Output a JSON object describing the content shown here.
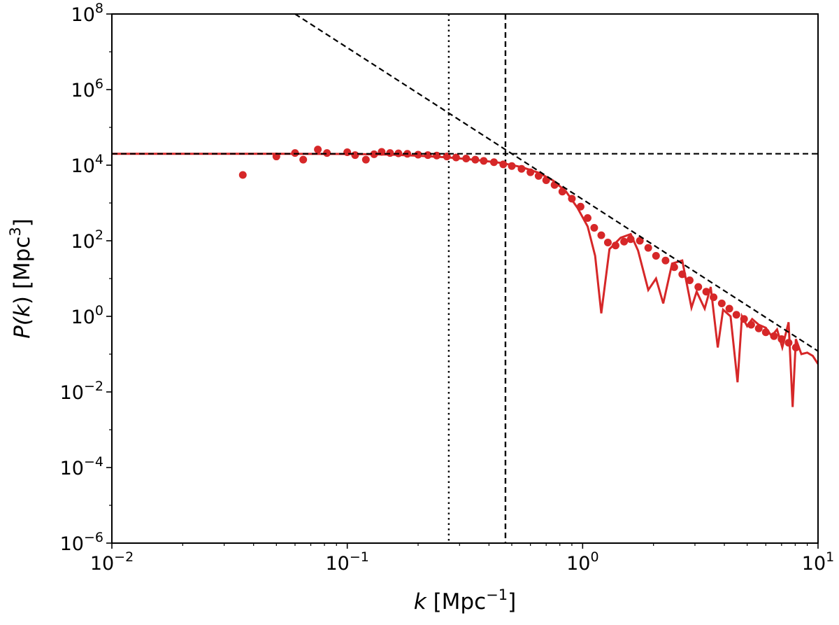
{
  "chart_data": {
    "type": "line",
    "xscale": "log",
    "yscale": "log",
    "xlim": [
      0.01,
      10
    ],
    "ylim": [
      1e-06,
      100000000.0
    ],
    "xlabel": {
      "var": "k",
      "unit_open": " [Mpc",
      "unit_exp": "−1",
      "unit_close": "]"
    },
    "ylabel": {
      "var_open": "P(",
      "var_k": "k",
      "var_close": ")",
      "unit_open": " [Mpc",
      "unit_exp": "3",
      "unit_close": "]"
    },
    "x_ticks": [
      {
        "value": 0.01,
        "base": "10",
        "exp": "−2"
      },
      {
        "value": 0.1,
        "base": "10",
        "exp": "−1"
      },
      {
        "value": 1,
        "base": "10",
        "exp": "0"
      },
      {
        "value": 10,
        "base": "10",
        "exp": "1"
      }
    ],
    "y_ticks": [
      {
        "value": 1e-06,
        "base": "10",
        "exp": "−6"
      },
      {
        "value": 0.0001,
        "base": "10",
        "exp": "−4"
      },
      {
        "value": 0.01,
        "base": "10",
        "exp": "−2"
      },
      {
        "value": 1,
        "base": "10",
        "exp": "0"
      },
      {
        "value": 100,
        "base": "10",
        "exp": "2"
      },
      {
        "value": 10000,
        "base": "10",
        "exp": "4"
      },
      {
        "value": 1000000,
        "base": "10",
        "exp": "6"
      },
      {
        "value": 100000000,
        "base": "10",
        "exp": "8"
      }
    ],
    "colors": {
      "series": "#d62728",
      "reference": "#000000"
    },
    "series": [
      {
        "style": "solid-line",
        "color": "#d62728",
        "points": [
          [
            0.01,
            20000
          ],
          [
            0.05,
            20000
          ],
          [
            0.1,
            19800
          ],
          [
            0.15,
            19000
          ],
          [
            0.2,
            17800
          ],
          [
            0.27,
            16000
          ],
          [
            0.35,
            13800
          ],
          [
            0.45,
            11500
          ],
          [
            0.55,
            8900
          ],
          [
            0.65,
            6300
          ],
          [
            0.75,
            3900
          ],
          [
            0.85,
            2000
          ],
          [
            0.95,
            750
          ],
          [
            1.05,
            240
          ],
          [
            1.13,
            40
          ],
          [
            1.2,
            1.2
          ],
          [
            1.3,
            60
          ],
          [
            1.45,
            120
          ],
          [
            1.6,
            150
          ],
          [
            1.72,
            55
          ],
          [
            1.9,
            5
          ],
          [
            2.05,
            10
          ],
          [
            2.2,
            2.2
          ],
          [
            2.4,
            25
          ],
          [
            2.65,
            30
          ],
          [
            2.9,
            1.7
          ],
          [
            3.05,
            4.5
          ],
          [
            3.3,
            1.6
          ],
          [
            3.5,
            6
          ],
          [
            3.75,
            0.15
          ],
          [
            3.95,
            1.5
          ],
          [
            4.25,
            1.0
          ],
          [
            4.55,
            0.018
          ],
          [
            4.75,
            1.0
          ],
          [
            5.0,
            0.55
          ],
          [
            5.25,
            0.85
          ],
          [
            5.6,
            0.6
          ],
          [
            6.0,
            0.5
          ],
          [
            6.35,
            0.3
          ],
          [
            6.7,
            0.45
          ],
          [
            7.05,
            0.15
          ],
          [
            7.5,
            0.7
          ],
          [
            7.8,
            0.004
          ],
          [
            8.05,
            0.25
          ],
          [
            8.5,
            0.1
          ],
          [
            9.0,
            0.11
          ],
          [
            9.5,
            0.09
          ],
          [
            10,
            0.055
          ]
        ]
      },
      {
        "style": "markers",
        "color": "#d62728",
        "points": [
          [
            0.036,
            5500
          ],
          [
            0.05,
            17000
          ],
          [
            0.06,
            21000
          ],
          [
            0.065,
            14000
          ],
          [
            0.075,
            26000
          ],
          [
            0.082,
            21000
          ],
          [
            0.1,
            22000
          ],
          [
            0.108,
            18500
          ],
          [
            0.12,
            14000
          ],
          [
            0.13,
            19500
          ],
          [
            0.14,
            22500
          ],
          [
            0.152,
            21000
          ],
          [
            0.165,
            20500
          ],
          [
            0.18,
            20000
          ],
          [
            0.2,
            19000
          ],
          [
            0.22,
            18500
          ],
          [
            0.24,
            18000
          ],
          [
            0.265,
            17000
          ],
          [
            0.29,
            16000
          ],
          [
            0.32,
            15000
          ],
          [
            0.35,
            14000
          ],
          [
            0.38,
            13000
          ],
          [
            0.42,
            12000
          ],
          [
            0.46,
            10500
          ],
          [
            0.5,
            9500
          ],
          [
            0.55,
            8000
          ],
          [
            0.6,
            6500
          ],
          [
            0.65,
            5200
          ],
          [
            0.7,
            4000
          ],
          [
            0.76,
            3000
          ],
          [
            0.82,
            2000
          ],
          [
            0.9,
            1300
          ],
          [
            0.98,
            800
          ],
          [
            1.05,
            400
          ],
          [
            1.12,
            220
          ],
          [
            1.2,
            140
          ],
          [
            1.28,
            90
          ],
          [
            1.38,
            75
          ],
          [
            1.5,
            95
          ],
          [
            1.6,
            110
          ],
          [
            1.75,
            100
          ],
          [
            1.9,
            65
          ],
          [
            2.05,
            40
          ],
          [
            2.25,
            30
          ],
          [
            2.45,
            20
          ],
          [
            2.65,
            13
          ],
          [
            2.85,
            9
          ],
          [
            3.1,
            6
          ],
          [
            3.35,
            4.5
          ],
          [
            3.6,
            3.2
          ],
          [
            3.9,
            2.2
          ],
          [
            4.2,
            1.6
          ],
          [
            4.5,
            1.1
          ],
          [
            4.85,
            0.85
          ],
          [
            5.2,
            0.6
          ],
          [
            5.6,
            0.48
          ],
          [
            6.0,
            0.38
          ],
          [
            6.5,
            0.3
          ],
          [
            7.0,
            0.25
          ],
          [
            7.5,
            0.2
          ],
          [
            8.05,
            0.15
          ]
        ]
      },
      {
        "style": "dashed-line",
        "color": "#000000",
        "points": [
          [
            0.01,
            20000
          ],
          [
            10,
            20000
          ]
        ]
      },
      {
        "style": "dashed-line",
        "color": "#000000",
        "points": [
          [
            0.06,
            100000000
          ],
          [
            10,
            0.12
          ]
        ]
      }
    ],
    "vertical_lines": [
      {
        "x": 0.27,
        "style": "dotted",
        "color": "#000000"
      },
      {
        "x": 0.47,
        "style": "dashed",
        "color": "#000000"
      }
    ]
  }
}
